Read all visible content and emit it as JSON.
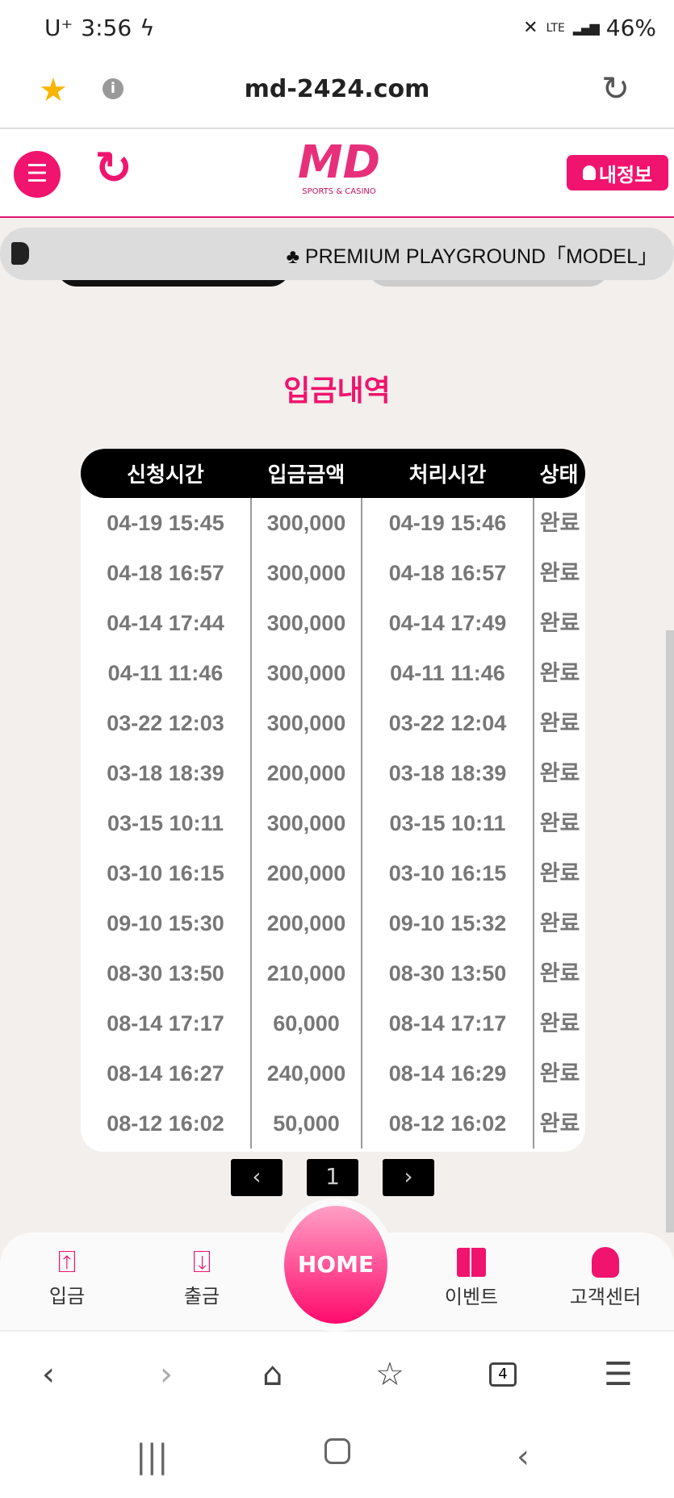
{
  "status_bar": {
    "carrier": "U⁺",
    "time": "3:56",
    "network": "LTE",
    "battery": "46%"
  },
  "browser": {
    "url": "md-2424.com",
    "tab_count": "4"
  },
  "header": {
    "logo_text": "MD",
    "logo_sub": "SPORTS & CASINO",
    "my_info_label": "내정보"
  },
  "ticker": {
    "text": "♣ PREMIUM PLAYGROUND「MODEL」"
  },
  "page_title": "입금내역",
  "table": {
    "columns": [
      "신청시간",
      "입금금액",
      "처리시간",
      "상태"
    ],
    "rows": [
      [
        "04-19 15:45",
        "300,000",
        "04-19 15:46",
        "완료"
      ],
      [
        "04-18 16:57",
        "300,000",
        "04-18 16:57",
        "완료"
      ],
      [
        "04-14 17:44",
        "300,000",
        "04-14 17:49",
        "완료"
      ],
      [
        "04-11 11:46",
        "300,000",
        "04-11 11:46",
        "완료"
      ],
      [
        "03-22 12:03",
        "300,000",
        "03-22 12:04",
        "완료"
      ],
      [
        "03-18 18:39",
        "200,000",
        "03-18 18:39",
        "완료"
      ],
      [
        "03-15 10:11",
        "300,000",
        "03-15 10:11",
        "완료"
      ],
      [
        "03-10 16:15",
        "200,000",
        "03-10 16:15",
        "완료"
      ],
      [
        "09-10 15:30",
        "200,000",
        "09-10 15:32",
        "완료"
      ],
      [
        "08-30 13:50",
        "210,000",
        "08-30 13:50",
        "완료"
      ],
      [
        "08-14 17:17",
        "60,000",
        "08-14 17:17",
        "완료"
      ],
      [
        "08-14 16:27",
        "240,000",
        "08-14 16:29",
        "완료"
      ],
      [
        "08-12 16:02",
        "50,000",
        "08-12 16:02",
        "완료"
      ]
    ]
  },
  "pagination": {
    "prev": "‹",
    "current": "1",
    "next": "›"
  },
  "bottom_nav": {
    "deposit": "입금",
    "withdraw": "출금",
    "home": "HOME",
    "event": "이벤트",
    "support": "고객센터"
  },
  "colors": {
    "accent": "#f0146e"
  }
}
